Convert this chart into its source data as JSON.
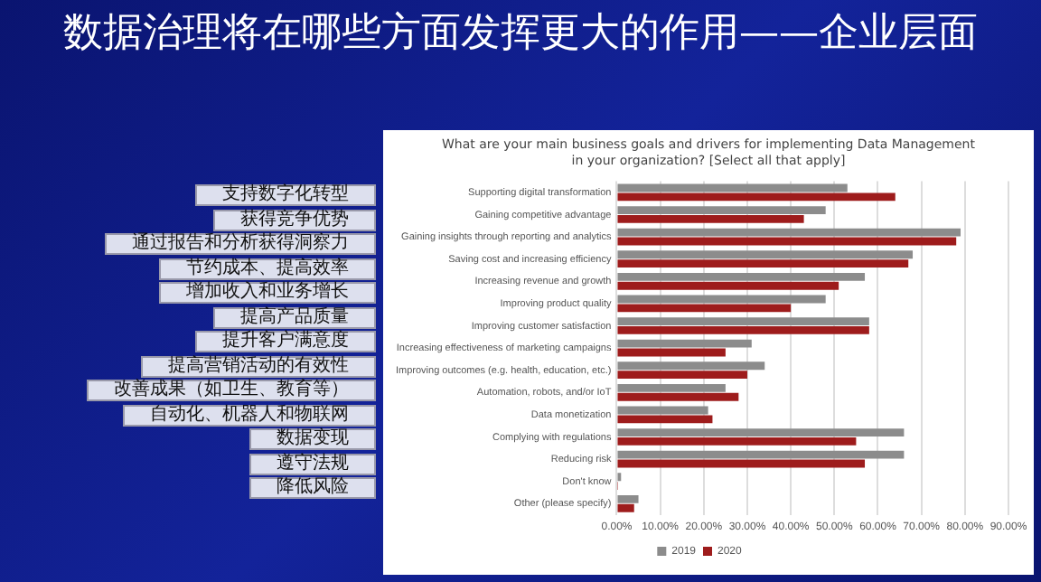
{
  "chart_data": {
    "type": "bar",
    "orientation": "horizontal",
    "title": "数据治理将在哪些方面发挥更大的作用——企业层面",
    "subtitle": "What are your main business goals and drivers for implementing Data Management in your organization? [Select all that apply]",
    "categories": [
      "Supporting digital transformation",
      "Gaining competitive advantage",
      "Gaining insights through reporting and analytics",
      "Saving cost and increasing efficiency",
      "Increasing revenue and growth",
      "Improving product quality",
      "Improving customer satisfaction",
      "Increasing effectiveness of marketing campaigns",
      "Improving outcomes (e.g. health, education, etc.)",
      "Automation, robots, and/or IoT",
      "Data monetization",
      "Complying with regulations",
      "Reducing risk",
      "Don't know",
      "Other (please specify)"
    ],
    "series": [
      {
        "name": "2019",
        "color": "#8c8c8c",
        "values": [
          53,
          48,
          79,
          68,
          57,
          48,
          58,
          31,
          34,
          25,
          21,
          66,
          66,
          1,
          5
        ]
      },
      {
        "name": "2020",
        "color": "#9e1c1c",
        "values": [
          64,
          43,
          78,
          67,
          51,
          40,
          58,
          25,
          30,
          28,
          22,
          55,
          57,
          0.3,
          4
        ]
      }
    ],
    "xlim": [
      0,
      90
    ],
    "xticks": [
      {
        "value": 0,
        "label": "0.00%"
      },
      {
        "value": 10,
        "label": "10.00%"
      },
      {
        "value": 20,
        "label": "20.00%"
      },
      {
        "value": 30,
        "label": "30.00%"
      },
      {
        "value": 40,
        "label": "40.00%"
      },
      {
        "value": 50,
        "label": "50.00%"
      },
      {
        "value": 60,
        "label": "60.00%"
      },
      {
        "value": 70,
        "label": "70.00%"
      },
      {
        "value": 80,
        "label": "80.00%"
      },
      {
        "value": 90,
        "label": "90.00%"
      }
    ],
    "grid": "x",
    "legend": "bottom",
    "annotations": [
      "支持数字化转型",
      "获得竞争优势",
      "通过报告和分析获得洞察力",
      "节约成本、提高效率",
      "增加收入和业务增长",
      "提高产品质量",
      "提升客户满意度",
      "提高营销活动的有效性",
      "改善成果（如卫生、教育等）",
      "自动化、机器人和物联网",
      "数据变现",
      "遵守法规",
      "降低风险"
    ]
  }
}
